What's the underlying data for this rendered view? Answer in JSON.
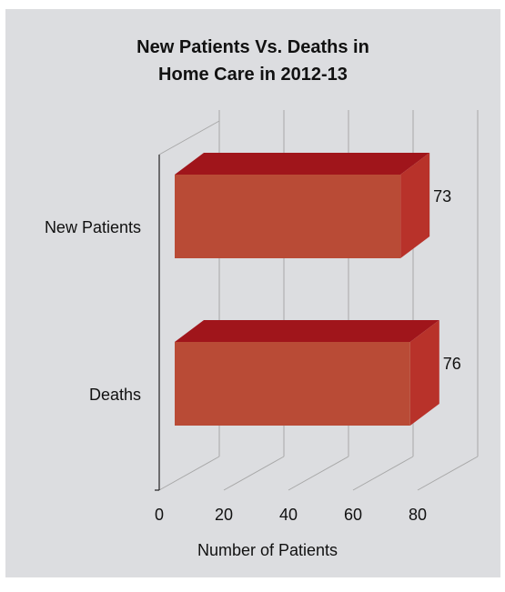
{
  "chart_data": {
    "type": "bar",
    "orientation": "horizontal",
    "style": "3d",
    "title_lines": [
      "New Patients Vs. Deaths in",
      "Home Care in 2012-13"
    ],
    "categories": [
      "New Patients",
      "Deaths"
    ],
    "values": [
      73,
      76
    ],
    "data_labels": [
      "73",
      "76"
    ],
    "xlabel": "Number of Patients",
    "ylabel": "",
    "xlim": [
      0,
      80
    ],
    "x_ticks": [
      0,
      20,
      40,
      60,
      80
    ],
    "x_tick_labels": [
      "0",
      "20",
      "40",
      "60",
      "80"
    ],
    "grid": true,
    "legend": "none",
    "colors": {
      "panel_background": "#dcdde0",
      "bar_front": "#b94b36",
      "bar_top": "#a0151b",
      "bar_side": "#b8322a",
      "grid_line": "#a8a8a8",
      "axis_line": "#222222"
    }
  }
}
